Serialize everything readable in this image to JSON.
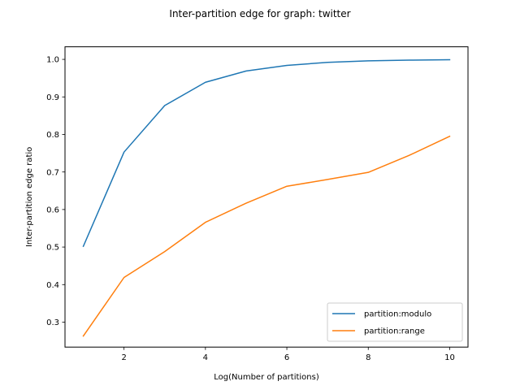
{
  "chart_data": {
    "type": "line",
    "title": "Inter-partition edge for graph: twitter",
    "xlabel": "Log(Number of partitions)",
    "ylabel": "Inter-partition edge ratio",
    "x": [
      1,
      2,
      3,
      4,
      5,
      6,
      7,
      8,
      9,
      10
    ],
    "xlim": [
      0.55,
      10.45
    ],
    "ylim": [
      0.2335,
      1.0335
    ],
    "xticks": [
      2,
      4,
      6,
      8,
      10
    ],
    "yticks": [
      0.3,
      0.4,
      0.5,
      0.6,
      0.7,
      0.8,
      0.9,
      1.0
    ],
    "ytick_labels": [
      "0.3",
      "0.4",
      "0.5",
      "0.6",
      "0.7",
      "0.8",
      "0.9",
      "1.0"
    ],
    "grid": false,
    "legend_position": "lower-right",
    "series": [
      {
        "name": "partition:modulo",
        "color": "#1f77b4",
        "values": [
          0.502,
          0.753,
          0.877,
          0.939,
          0.969,
          0.984,
          0.992,
          0.996,
          0.998,
          0.999
        ]
      },
      {
        "name": "partition:range",
        "color": "#ff7f0e",
        "values": [
          0.263,
          0.419,
          0.488,
          0.566,
          0.617,
          0.662,
          0.68,
          0.699,
          0.744,
          0.795
        ]
      }
    ]
  }
}
